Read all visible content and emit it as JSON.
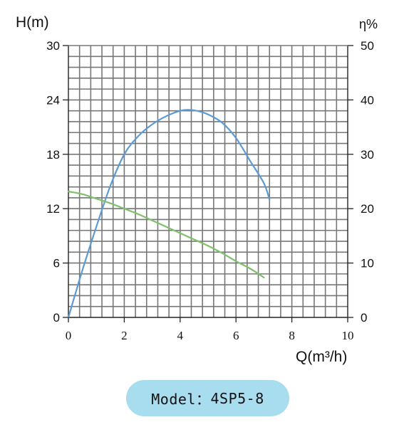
{
  "chart_data": {
    "type": "line",
    "left_axis_label": "H(m)",
    "right_axis_label": "η%",
    "x_axis_label": "Q(m³/h)",
    "xlim": [
      0,
      10
    ],
    "ylim_left": [
      0,
      30
    ],
    "ylim_right": [
      0,
      50
    ],
    "x_ticks": [
      "0",
      "2",
      "4",
      "6",
      "8",
      "10"
    ],
    "y_left_ticks": [
      "0",
      "6",
      "12",
      "18",
      "24",
      "30"
    ],
    "y_right_ticks": [
      "0",
      "10",
      "20",
      "30",
      "40",
      "50"
    ],
    "grid": true,
    "series": [
      {
        "axis": "left",
        "color": "#5b9bd5",
        "x": [
          0,
          0.5,
          1.0,
          1.5,
          2.0,
          2.5,
          3.0,
          3.5,
          4.0,
          4.3,
          4.6,
          5.0,
          5.5,
          6.0,
          6.5,
          7.0,
          7.2
        ],
        "y": [
          0,
          5.2,
          10.0,
          14.5,
          18.0,
          20.0,
          21.3,
          22.2,
          22.8,
          22.9,
          22.8,
          22.4,
          21.5,
          19.8,
          17.3,
          14.8,
          13.0
        ]
      },
      {
        "axis": "left",
        "color": "#7fc16b",
        "x": [
          0,
          0.5,
          1.0,
          1.5,
          2.0,
          2.5,
          3.0,
          3.5,
          4.0,
          4.5,
          5.0,
          5.5,
          6.0,
          6.5,
          7.0
        ],
        "y": [
          13.9,
          13.6,
          13.1,
          12.6,
          12.0,
          11.4,
          10.7,
          10.0,
          9.3,
          8.6,
          7.9,
          7.1,
          6.2,
          5.4,
          4.4
        ]
      }
    ]
  },
  "model": {
    "label": "Model：",
    "value": "4SP5-8"
  }
}
